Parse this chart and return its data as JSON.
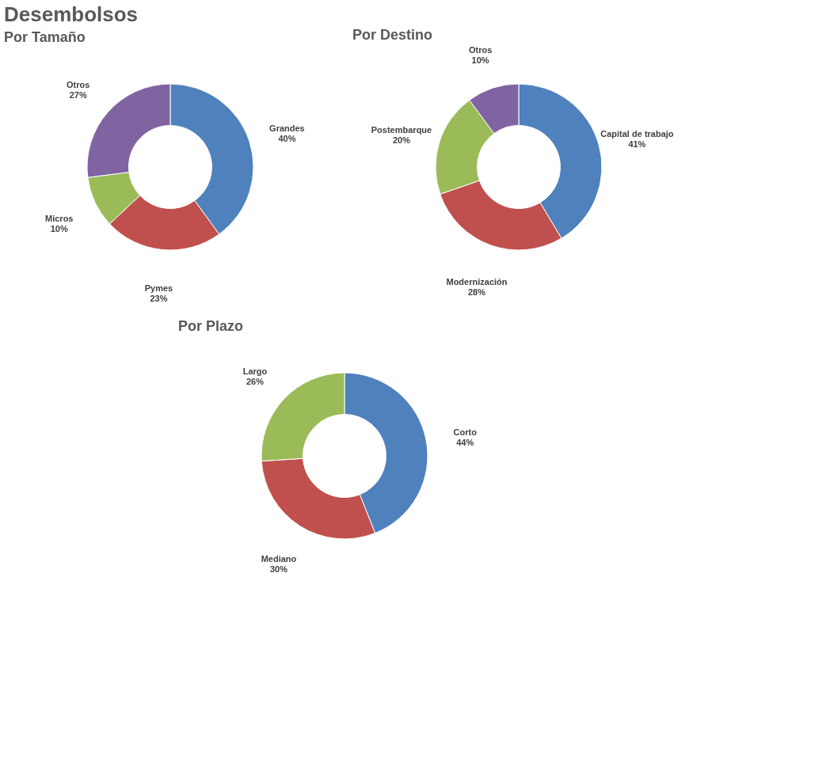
{
  "chart_data": [
    {
      "type": "donut",
      "title": "Por  Tamaño",
      "annotations": [
        "Desembolsos"
      ],
      "categories": [
        "Grandes",
        "Pymes",
        "Micros",
        "Otros"
      ],
      "values": [
        40,
        23,
        10,
        27
      ],
      "value_labels": [
        "40%",
        "23%",
        "10%",
        "27%"
      ],
      "colors": [
        "#4f81bd",
        "#c0504d",
        "#9bbb59",
        "#8064a2"
      ]
    },
    {
      "type": "donut",
      "title": "Por Destino",
      "categories": [
        "Capital de trabajo",
        "Modernización",
        "Postembarque",
        "Otros"
      ],
      "values": [
        41,
        28,
        20,
        10
      ],
      "value_labels": [
        "41%",
        "28%",
        "20%",
        "10%"
      ],
      "colors": [
        "#4f81bd",
        "#c0504d",
        "#9bbb59",
        "#8064a2"
      ]
    },
    {
      "type": "donut",
      "title": "Por Plazo",
      "categories": [
        "Corto",
        "Mediano",
        "Largo"
      ],
      "values": [
        44,
        30,
        26
      ],
      "value_labels": [
        "44%",
        "30%",
        "26%"
      ],
      "colors": [
        "#4f81bd",
        "#c0504d",
        "#9bbb59"
      ]
    }
  ]
}
